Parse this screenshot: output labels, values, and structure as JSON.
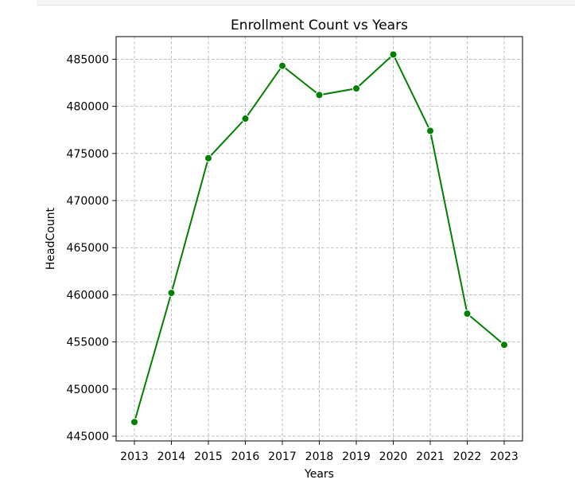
{
  "chart_data": {
    "type": "line",
    "title": "Enrollment Count vs Years",
    "xlabel": "Years",
    "ylabel": "HeadCount",
    "x": [
      "2013",
      "2014",
      "2015",
      "2016",
      "2017",
      "2018",
      "2019",
      "2020",
      "2021",
      "2022",
      "2023"
    ],
    "yticks": [
      "445000",
      "450000",
      "455000",
      "460000",
      "465000",
      "470000",
      "475000",
      "480000",
      "485000"
    ],
    "series": [
      {
        "values": [
          446500,
          460200,
          474500,
          478700,
          484300,
          481200,
          481900,
          485500,
          477400,
          458000,
          454700
        ],
        "color": "#008000",
        "marker": "circle"
      }
    ],
    "ylim": [
      444500,
      487400
    ],
    "grid": true
  }
}
